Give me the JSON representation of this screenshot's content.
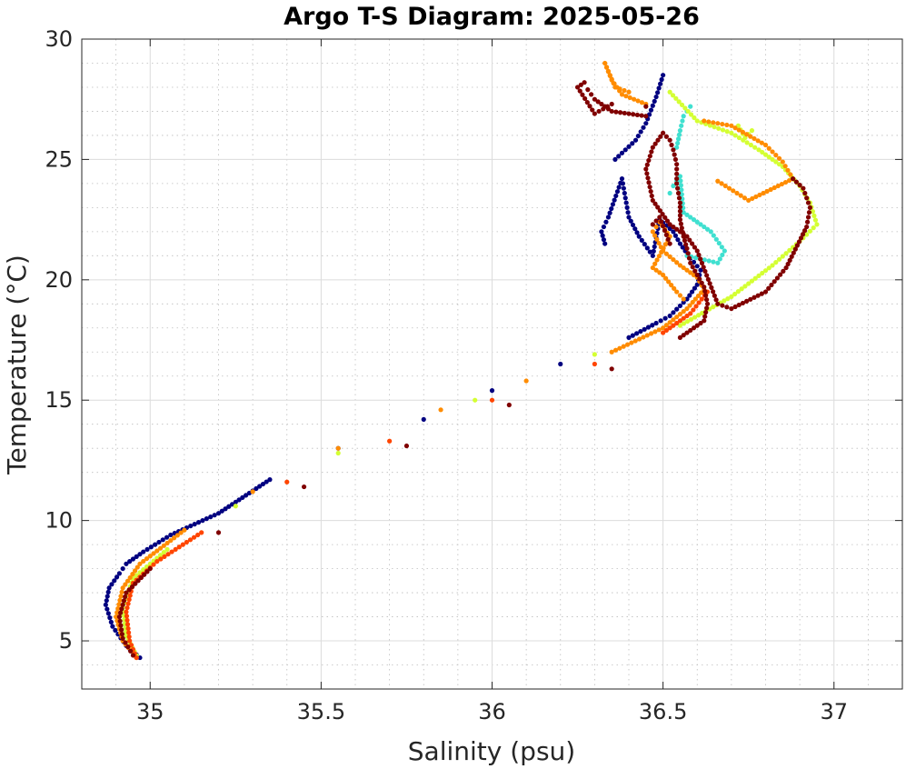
{
  "chart_data": {
    "type": "scatter",
    "title": "Argo T-S Diagram: 2025-05-26",
    "xlabel": "Salinity (psu)",
    "ylabel": "Temperature (°C)",
    "xlim": [
      34.8,
      37.2
    ],
    "ylim": [
      3,
      30
    ],
    "x_ticks": [
      35,
      35.5,
      36,
      36.5,
      37
    ],
    "x_tick_labels": [
      "35",
      "35.5",
      "36",
      "36.5",
      "37"
    ],
    "y_ticks": [
      5,
      10,
      15,
      20,
      25,
      30
    ],
    "y_tick_labels": [
      "5",
      "10",
      "15",
      "20",
      "25",
      "30"
    ],
    "x_minor_step": 0.1,
    "y_minor_step": 1,
    "grid": true,
    "minor_grid": true,
    "legend": "none",
    "series": [
      {
        "color": "#000080",
        "x": [
          34.97,
          34.93,
          34.89,
          34.87,
          34.88,
          34.91,
          34.93,
          34.98,
          35.06,
          35.2,
          35.35,
          35.55,
          35.8,
          36.0,
          36.2,
          36.4,
          36.48,
          36.52,
          36.57,
          36.6,
          36.61,
          36.58,
          36.55,
          36.53,
          36.49,
          36.47,
          36.43,
          36.4,
          36.39,
          36.38,
          36.34,
          36.32,
          36.33,
          36.36,
          36.42,
          36.45,
          36.48,
          36.5
        ],
        "y": [
          4.3,
          4.8,
          5.6,
          6.5,
          7.2,
          7.8,
          8.2,
          8.7,
          9.4,
          10.3,
          11.7,
          13.0,
          14.2,
          15.4,
          16.5,
          17.6,
          18.2,
          18.5,
          19.2,
          19.8,
          20.4,
          20.9,
          21.5,
          22.0,
          22.5,
          21.0,
          21.8,
          22.6,
          23.4,
          24.2,
          22.6,
          22.0,
          21.5,
          25.0,
          25.8,
          26.5,
          27.6,
          28.5
        ]
      },
      {
        "color": "#40e0d0",
        "x": [
          36.52,
          36.53,
          36.54,
          36.55,
          36.56,
          36.6,
          36.64,
          36.68,
          36.66,
          36.57,
          36.54,
          36.55,
          36.56,
          36.58
        ],
        "y": [
          23.6,
          23.9,
          24.1,
          24.3,
          22.8,
          22.4,
          22.0,
          21.2,
          20.7,
          21.0,
          25.5,
          26.2,
          26.8,
          27.2
        ]
      },
      {
        "color": "#d4ff33",
        "x": [
          34.96,
          34.93,
          34.92,
          34.95,
          35.05,
          35.25,
          35.55,
          35.95,
          36.3,
          36.55,
          36.7,
          36.82,
          36.9,
          36.95,
          36.93,
          36.9,
          36.85,
          36.78,
          36.7,
          36.6,
          36.52,
          36.72,
          36.74,
          36.76
        ],
        "y": [
          4.4,
          5.2,
          6.4,
          7.6,
          8.8,
          10.6,
          12.8,
          15.0,
          16.9,
          18.1,
          19.3,
          20.6,
          21.6,
          22.3,
          23.2,
          23.9,
          24.7,
          25.4,
          26.1,
          26.6,
          27.8,
          26.4,
          25.9,
          26.2
        ]
      },
      {
        "color": "#ff8c00",
        "x": [
          34.96,
          34.92,
          34.9,
          34.92,
          34.97,
          35.1,
          35.3,
          35.55,
          35.85,
          36.1,
          36.35,
          36.5,
          36.57,
          36.62,
          36.6,
          36.55,
          36.5,
          36.47,
          36.49,
          36.52,
          36.47,
          36.5,
          36.54,
          36.56,
          36.62,
          36.7,
          36.8,
          36.85,
          36.88,
          36.75,
          36.66,
          36.45,
          36.38,
          36.35,
          36.33,
          36.36,
          36.4
        ],
        "y": [
          4.3,
          5.0,
          6.0,
          7.2,
          8.2,
          9.6,
          11.2,
          13.0,
          14.6,
          15.8,
          17.0,
          18.0,
          18.8,
          19.6,
          20.1,
          20.6,
          21.2,
          22.0,
          22.4,
          21.8,
          20.5,
          20.2,
          19.5,
          19.2,
          26.6,
          26.4,
          25.6,
          24.9,
          24.2,
          23.3,
          24.1,
          27.3,
          27.7,
          28.3,
          29.0,
          28.0,
          27.8
        ]
      },
      {
        "color": "#ff4500",
        "x": [
          34.96,
          34.94,
          34.93,
          34.95,
          35.02,
          35.15,
          35.4,
          35.7,
          36.0,
          36.3,
          36.5,
          36.58,
          36.63
        ],
        "y": [
          4.3,
          5.0,
          6.2,
          7.4,
          8.3,
          9.5,
          11.6,
          13.3,
          15.0,
          16.5,
          17.8,
          18.6,
          19.5
        ]
      },
      {
        "color": "#800000",
        "x": [
          34.95,
          34.92,
          34.91,
          34.93,
          35.0,
          35.2,
          35.45,
          35.75,
          36.05,
          36.35,
          36.55,
          36.62,
          36.63,
          36.62,
          36.6,
          36.58,
          36.57,
          36.56,
          36.55,
          36.55,
          36.54,
          36.54,
          36.53,
          36.52,
          36.5,
          36.47,
          36.45,
          36.47,
          36.52,
          36.57,
          36.6,
          36.66,
          36.7,
          36.8,
          36.86,
          36.92,
          36.93,
          36.91,
          36.88,
          36.45,
          36.35,
          36.3,
          36.28,
          36.27,
          36.25,
          36.3,
          36.35,
          36.47,
          36.49,
          36.52,
          36.45
        ],
        "y": [
          4.4,
          5.1,
          6.0,
          7.0,
          8.0,
          9.5,
          11.4,
          13.1,
          14.8,
          16.3,
          17.6,
          18.3,
          19.0,
          19.7,
          20.2,
          20.7,
          21.3,
          21.8,
          22.5,
          23.2,
          24.0,
          24.8,
          25.4,
          25.8,
          26.1,
          25.5,
          24.6,
          23.3,
          22.3,
          21.8,
          21.2,
          19.0,
          18.8,
          19.5,
          20.5,
          22.2,
          23.0,
          23.8,
          24.2,
          26.8,
          27.0,
          27.5,
          27.9,
          28.2,
          28.0,
          26.9,
          27.3,
          22.3,
          22.6,
          21.5,
          27.2
        ]
      }
    ]
  }
}
